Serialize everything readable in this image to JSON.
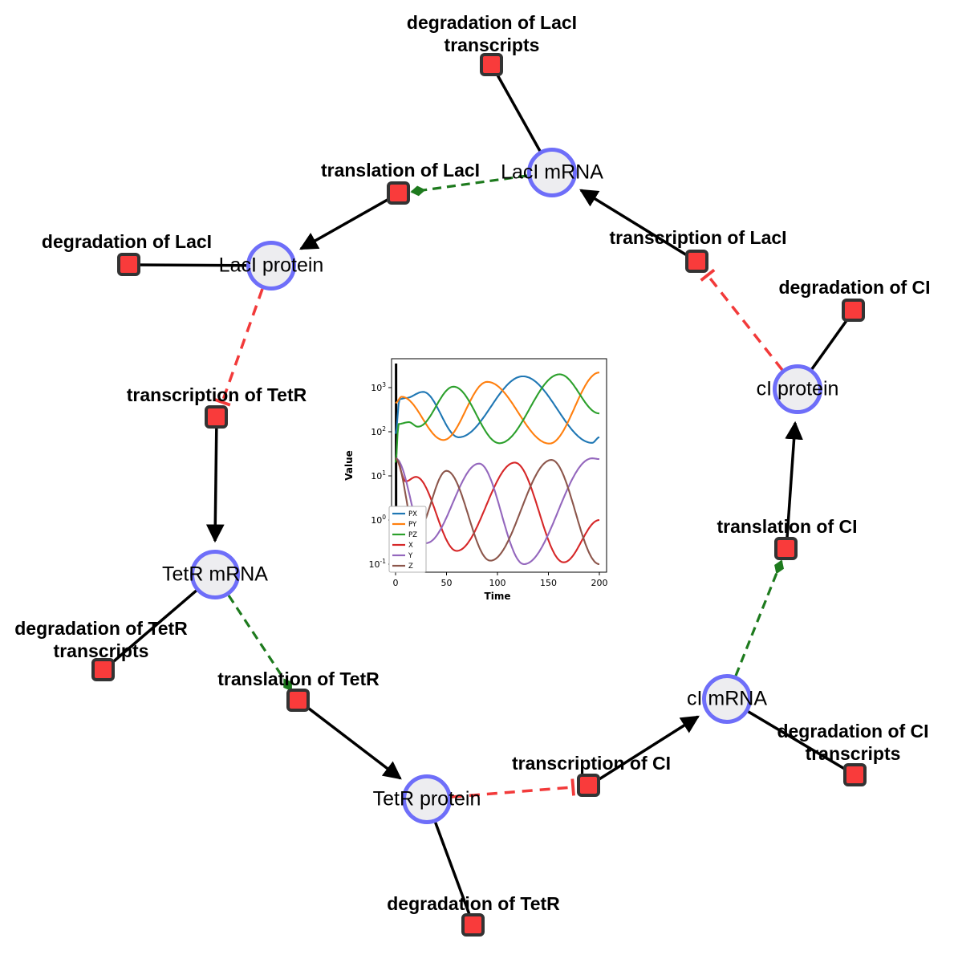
{
  "diagram": {
    "species": [
      {
        "id": "laci-mrna",
        "label": "LacI mRNA"
      },
      {
        "id": "laci-protein",
        "label": "LacI protein"
      },
      {
        "id": "tetr-mrna",
        "label": "TetR mRNA"
      },
      {
        "id": "tetr-protein",
        "label": "TetR protein"
      },
      {
        "id": "ci-mrna",
        "label": "cI mRNA"
      },
      {
        "id": "ci-protein",
        "label": "cI protein"
      }
    ],
    "reactions": [
      {
        "id": "degradation-laci-transcripts",
        "label_lines": [
          "degradation of LacI",
          "transcripts"
        ]
      },
      {
        "id": "translation-laci",
        "label_lines": [
          "translation of LacI"
        ]
      },
      {
        "id": "transcription-laci",
        "label_lines": [
          "transcription of LacI"
        ]
      },
      {
        "id": "degradation-laci",
        "label_lines": [
          "degradation of LacI"
        ]
      },
      {
        "id": "degradation-ci",
        "label_lines": [
          "degradation of CI"
        ]
      },
      {
        "id": "transcription-tetr",
        "label_lines": [
          "transcription of TetR"
        ]
      },
      {
        "id": "translation-ci",
        "label_lines": [
          "translation of CI"
        ]
      },
      {
        "id": "degradation-tetr-transcripts",
        "label_lines": [
          "degradation of TetR",
          "transcripts"
        ]
      },
      {
        "id": "translation-tetr",
        "label_lines": [
          "translation of TetR"
        ]
      },
      {
        "id": "transcription-ci",
        "label_lines": [
          "transcription of CI"
        ]
      },
      {
        "id": "degradation-ci-transcripts",
        "label_lines": [
          "degradation of CI",
          "transcripts"
        ]
      },
      {
        "id": "degradation-tetr",
        "label_lines": [
          "degradation of TetR"
        ]
      }
    ],
    "edge_types": {
      "reaction_link": "solid black line",
      "production_arrow": "solid black arrow",
      "modifier": "green dashed arrow with diamond head",
      "inhibition": "red dashed line with T-bar"
    },
    "colors": {
      "species_fill": "#ededf0",
      "species_stroke": "#6e6ef9",
      "reaction_fill": "#f93b3b",
      "reaction_stroke": "#333333",
      "edge_black": "#000000",
      "edge_green": "#1d7a1d",
      "edge_red": "#f23a3a"
    }
  },
  "chart_data": {
    "type": "line",
    "title": "",
    "xlabel": "Time",
    "ylabel": "Value",
    "y_scale": "log",
    "xlim": [
      -5,
      207
    ],
    "ylim": [
      0.066,
      4500
    ],
    "x_ticks": [
      0,
      50,
      100,
      150,
      200
    ],
    "y_tick_exponents": [
      -1,
      0,
      1,
      2,
      3
    ],
    "grid": false,
    "legend_position": "lower left",
    "vline_at_t": 0.5,
    "series": [
      {
        "name": "PX",
        "color": "#1f77b4",
        "points": [
          [
            0,
            90
          ],
          [
            4,
            550
          ],
          [
            10,
            580
          ],
          [
            27,
            800
          ],
          [
            62,
            75
          ],
          [
            125,
            1800
          ],
          [
            193,
            56
          ],
          [
            200,
            75
          ]
        ]
      },
      {
        "name": "PY",
        "color": "#ff7f0e",
        "points": [
          [
            0,
            450
          ],
          [
            6,
            620
          ],
          [
            47,
            65
          ],
          [
            90,
            1350
          ],
          [
            151,
            54
          ],
          [
            200,
            2200
          ]
        ]
      },
      {
        "name": "PZ",
        "color": "#2ca02c",
        "points": [
          [
            0,
            20
          ],
          [
            3,
            150
          ],
          [
            13,
            165
          ],
          [
            22,
            130
          ],
          [
            57,
            1050
          ],
          [
            102,
            55
          ],
          [
            161,
            2000
          ],
          [
            200,
            260
          ]
        ]
      },
      {
        "name": "X",
        "color": "#d62728",
        "points": [
          [
            0,
            25
          ],
          [
            10,
            7.5
          ],
          [
            20,
            9.5
          ],
          [
            60,
            0.2
          ],
          [
            117,
            20
          ],
          [
            165,
            0.11
          ],
          [
            200,
            1.0
          ]
        ]
      },
      {
        "name": "Y",
        "color": "#9467bd",
        "points": [
          [
            0,
            25
          ],
          [
            30,
            0.3
          ],
          [
            82,
            19
          ],
          [
            126,
            0.1
          ],
          [
            193,
            25
          ],
          [
            200,
            24
          ]
        ]
      },
      {
        "name": "Z",
        "color": "#8c564b",
        "points": [
          [
            0,
            25
          ],
          [
            20,
            0.5
          ],
          [
            50,
            13
          ],
          [
            93,
            0.12
          ],
          [
            153,
            23
          ],
          [
            200,
            0.1
          ]
        ]
      }
    ]
  }
}
